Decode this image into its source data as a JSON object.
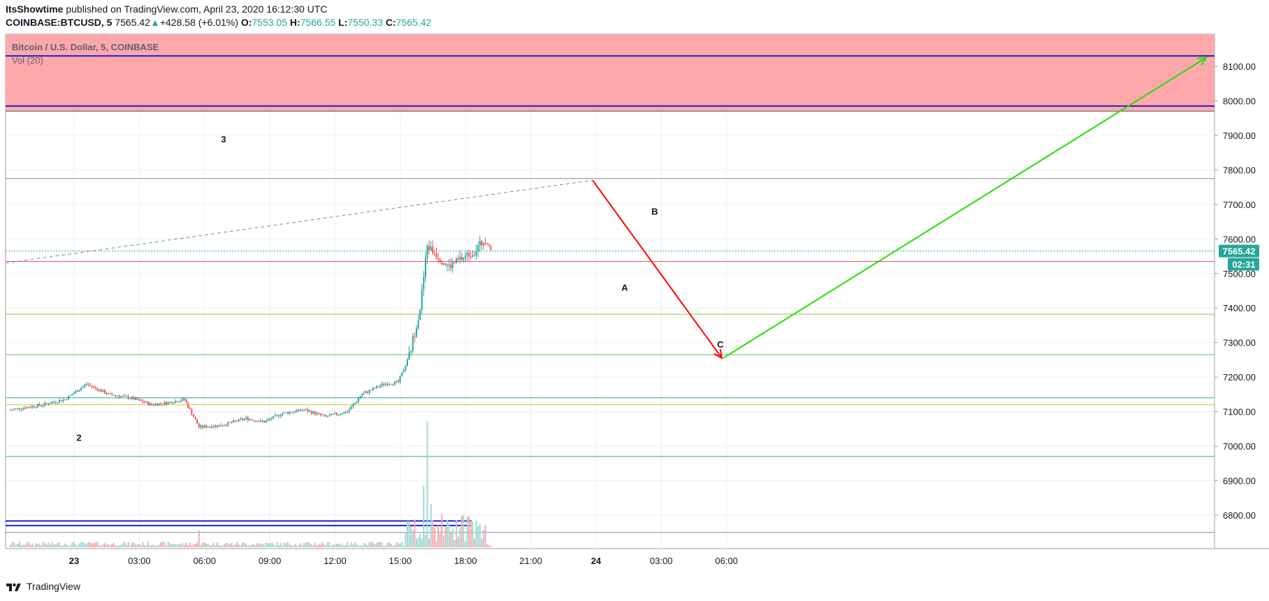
{
  "header": {
    "author": "ItsShowtime",
    "published_text": "published on TradingView.com, April 23, 2020 16:12:30 UTC",
    "symbol": "COINBASE:BTCUSD, 5",
    "last": "7565.42",
    "change_arrow": "▲",
    "change": "+428.58 (+6.01%)",
    "o_label": "O:",
    "o_value": "7553.05",
    "h_label": "H:",
    "h_value": "7566.55",
    "l_label": "L:",
    "l_value": "7550.33",
    "c_label": "C:",
    "c_value": "7565.42"
  },
  "legend": {
    "title": "Bitcoin / U.S. Dollar, 5, COINBASE",
    "volume": "Vol (20)"
  },
  "footer": {
    "brand": "TradingView",
    "logo_icon": "tradingview-logo-icon"
  },
  "colors": {
    "up": "#26a69a",
    "down": "#ef5350",
    "resistance_zone": "#ffa8ab",
    "blue": "#1c22c8",
    "red_arrow": "#ff0000",
    "green_arrow": "#22e000"
  },
  "chart_data": {
    "type": "candlestick",
    "title": "Bitcoin / U.S. Dollar, 5, COINBASE",
    "y_axis": {
      "min": 6720,
      "max": 8200,
      "ticks": [
        "8100.00",
        "8000.00",
        "7900.00",
        "7800.00",
        "7700.00",
        "7600.00",
        "7500.00",
        "7400.00",
        "7300.00",
        "7200.00",
        "7100.00",
        "7000.00",
        "6900.00",
        "6800.00"
      ],
      "position": "right"
    },
    "x_axis": {
      "ticks": [
        "23",
        "03:00",
        "06:00",
        "09:00",
        "12:00",
        "15:00",
        "18:00",
        "21:00",
        "24",
        "03:00",
        "06:00"
      ]
    },
    "last_price_label": "7565.42",
    "countdown_label": "02:31",
    "resistance_zone": [
      7970,
      8200
    ],
    "horizontal_lines": [
      {
        "price": 8130,
        "color": "#1c22c8"
      },
      {
        "price": 7985,
        "color": "#1c22c8"
      },
      {
        "price": 7970,
        "color": "#555555"
      },
      {
        "price": 7775,
        "color": "#888888"
      },
      {
        "price": 7565,
        "color": "#26a69a",
        "style": "dotted"
      },
      {
        "price": 7535,
        "color": "#ef5350"
      },
      {
        "price": 7382,
        "color": "#8bc34a"
      },
      {
        "price": 7265,
        "color": "#66bb6a"
      },
      {
        "price": 7140,
        "color": "#26a69a"
      },
      {
        "price": 7120,
        "color": "#c0ca33"
      },
      {
        "price": 6970,
        "color": "#26a69a"
      },
      {
        "price": 6750,
        "color": "#888888"
      }
    ],
    "wave_labels": [
      {
        "text": "3",
        "time": "01:15",
        "price": 7880
      },
      {
        "text": "2",
        "time": "23:00",
        "price": 7015
      },
      {
        "text": "A",
        "time": "15:05",
        "price": 7450
      },
      {
        "text": "B",
        "time": "15:45",
        "price": 7670
      },
      {
        "text": "C",
        "time": "17:55",
        "price": 7285
      }
    ],
    "arrows": [
      {
        "color": "red",
        "from": {
          "time": "14:15",
          "price": 7770
        },
        "to": {
          "time": "18:00",
          "price": 7255
        }
      },
      {
        "color": "green",
        "from": {
          "time": "18:00",
          "price": 7255
        },
        "to": {
          "time": "07:15",
          "price": 8125
        }
      }
    ],
    "trendline_dashed": {
      "from": {
        "time": "21:00",
        "price": 7530
      },
      "to": {
        "time": "14:15",
        "price": 7770
      }
    },
    "price_path": [
      {
        "t": 0,
        "p": 7105
      },
      {
        "t": 18,
        "p": 7120
      },
      {
        "t": 30,
        "p": 7135
      },
      {
        "t": 42,
        "p": 7180
      },
      {
        "t": 54,
        "p": 7150
      },
      {
        "t": 66,
        "p": 7140
      },
      {
        "t": 78,
        "p": 7120
      },
      {
        "t": 86,
        "p": 7125
      },
      {
        "t": 96,
        "p": 7135
      },
      {
        "t": 104,
        "p": 7055
      },
      {
        "t": 116,
        "p": 7060
      },
      {
        "t": 130,
        "p": 7080
      },
      {
        "t": 140,
        "p": 7070
      },
      {
        "t": 150,
        "p": 7095
      },
      {
        "t": 162,
        "p": 7105
      },
      {
        "t": 174,
        "p": 7085
      },
      {
        "t": 186,
        "p": 7100
      },
      {
        "t": 194,
        "p": 7150
      },
      {
        "t": 206,
        "p": 7180
      },
      {
        "t": 214,
        "p": 7185
      },
      {
        "t": 220,
        "p": 7260
      },
      {
        "t": 226,
        "p": 7400
      },
      {
        "t": 230,
        "p": 7580
      },
      {
        "t": 234,
        "p": 7560
      },
      {
        "t": 242,
        "p": 7520
      },
      {
        "t": 248,
        "p": 7540
      },
      {
        "t": 256,
        "p": 7565
      },
      {
        "t": 262,
        "p": 7600
      },
      {
        "t": 265,
        "p": 7565
      }
    ]
  }
}
